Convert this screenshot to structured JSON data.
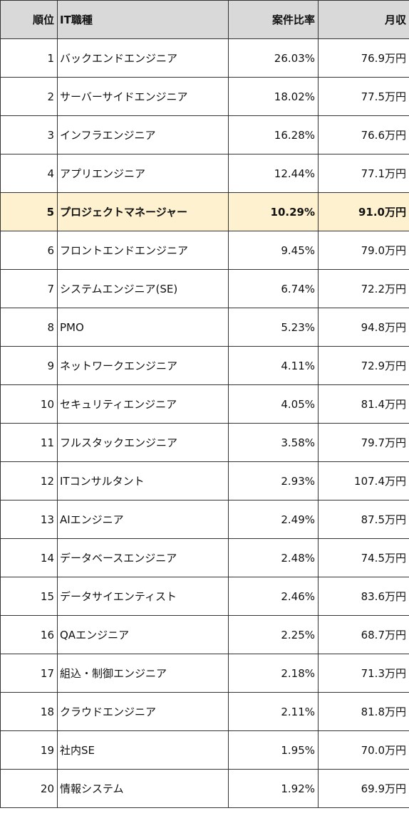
{
  "table": {
    "header": [
      "順位",
      "IT職種",
      "案件比率",
      "月収"
    ],
    "rows": [
      [
        "1",
        "バックエンドエンジニア",
        "26.03%",
        "76.9万円"
      ],
      [
        "2",
        "サーバーサイドエンジニア",
        "18.02%",
        "77.5万円"
      ],
      [
        "3",
        "インフラエンジニア",
        "16.28%",
        "76.6万円"
      ],
      [
        "4",
        "アプリエンジニア",
        "12.44%",
        "77.1万円"
      ],
      [
        "5",
        "プロジェクトマネージャー",
        "10.29%",
        "91.0万円"
      ],
      [
        "6",
        "フロントエンドエンジニア",
        "9.45%",
        "79.0万円"
      ],
      [
        "7",
        "システムエンジニア(SE)",
        "6.74%",
        "72.2万円"
      ],
      [
        "8",
        "PMO",
        "5.23%",
        "94.8万円"
      ],
      [
        "9",
        "ネットワークエンジニア",
        "4.11%",
        "72.9万円"
      ],
      [
        "10",
        "セキュリティエンジニア",
        "4.05%",
        "81.4万円"
      ],
      [
        "11",
        "フルスタックエンジニア",
        "3.58%",
        "79.7万円"
      ],
      [
        "12",
        "ITコンサルタント",
        "2.93%",
        "107.4万円"
      ],
      [
        "13",
        "AIエンジニア",
        "2.49%",
        "87.5万円"
      ],
      [
        "14",
        "データベースエンジニア",
        "2.48%",
        "74.5万円"
      ],
      [
        "15",
        "データサイエンティスト",
        "2.46%",
        "83.6万円"
      ],
      [
        "16",
        "QAエンジニア",
        "2.25%",
        "68.7万円"
      ],
      [
        "17",
        "組込・制御エンジニア",
        "2.18%",
        "71.3万円"
      ],
      [
        "18",
        "クラウドエンジニア",
        "2.11%",
        "81.8万円"
      ],
      [
        "19",
        "社内SE",
        "1.95%",
        "70.0万円"
      ],
      [
        "20",
        "情報システム",
        "1.92%",
        "69.9万円"
      ]
    ]
  }
}
